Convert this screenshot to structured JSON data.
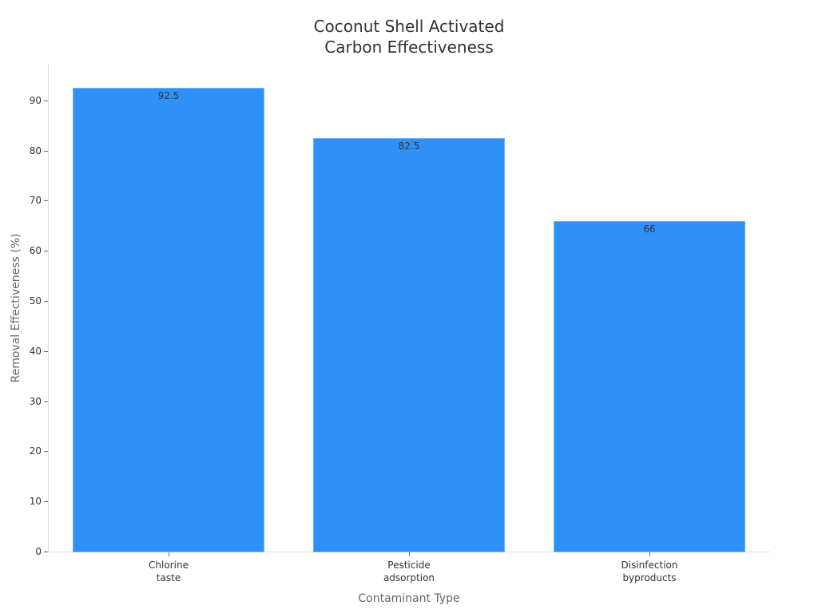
{
  "chart_data": {
    "type": "bar",
    "title": "Coconut Shell Activated Carbon Effectiveness",
    "title_lines": [
      "Coconut Shell Activated",
      "Carbon Effectiveness"
    ],
    "categories": [
      "Chlorine taste",
      "Pesticide adsorption",
      "Disinfection byproducts"
    ],
    "category_lines": [
      [
        "Chlorine",
        "taste"
      ],
      [
        "Pesticide",
        "adsorption"
      ],
      [
        "Disinfection",
        "byproducts"
      ]
    ],
    "values": [
      92.5,
      82.5,
      66
    ],
    "value_labels": [
      "92.5",
      "82.5",
      "66"
    ],
    "xlabel": "Contaminant Type",
    "ylabel": "Removal Effectiveness (%)",
    "ylim": [
      0,
      97
    ],
    "yticks": [
      0,
      10,
      20,
      30,
      40,
      50,
      60,
      70,
      80,
      90
    ],
    "grid": false,
    "legend": null,
    "bar_color": "#2f91f7"
  }
}
